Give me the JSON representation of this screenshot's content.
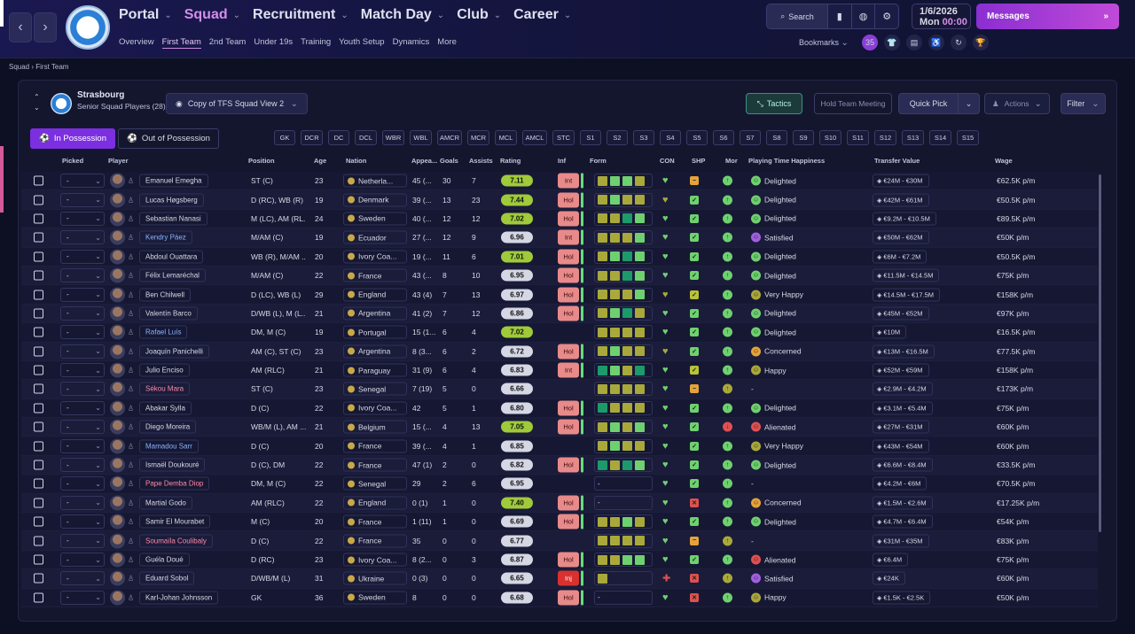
{
  "nav": {
    "back": "‹",
    "forward": "›",
    "items": [
      {
        "label": "Portal",
        "active": false
      },
      {
        "label": "Squad",
        "active": true
      },
      {
        "label": "Recruitment",
        "active": false
      },
      {
        "label": "Match Day",
        "active": false
      },
      {
        "label": "Club",
        "active": false
      },
      {
        "label": "Career",
        "active": false
      }
    ],
    "sub": [
      {
        "label": "Overview"
      },
      {
        "label": "First Team",
        "active": true
      },
      {
        "label": "2nd Team"
      },
      {
        "label": "Under 19s"
      },
      {
        "label": "Training"
      },
      {
        "label": "Youth Setup"
      },
      {
        "label": "Dynamics"
      },
      {
        "label": "More"
      }
    ]
  },
  "toolbar": {
    "search": "Search",
    "date": "1/6/2026",
    "day": "Mon",
    "time": "00:00",
    "messages": "Messages",
    "bookmarks": "Bookmarks",
    "notif_count": "35"
  },
  "breadcrumb": {
    "parent": "Squad",
    "current": "First Team"
  },
  "club": {
    "name": "Strasbourg",
    "sub": "Senior Squad Players (28)"
  },
  "view": {
    "label": "Copy of TFS Squad View 2"
  },
  "buttons": {
    "tactics": "Tactics",
    "team_meeting": "Hold Team Meeting",
    "quick_pick": "Quick Pick",
    "actions": "Actions",
    "filter": "Filter",
    "in_possession": "In Possession",
    "out_possession": "Out of Possession"
  },
  "positions": [
    "GK",
    "DCR",
    "DC",
    "DCL",
    "WBR",
    "WBL",
    "AMCR",
    "MCR",
    "MCL",
    "AMCL",
    "STC",
    "S1",
    "S2",
    "S3",
    "S4",
    "S5",
    "S6",
    "S7",
    "S8",
    "S9",
    "S10",
    "S11",
    "S12",
    "S13",
    "S14",
    "S15"
  ],
  "columns": {
    "picked": "Picked",
    "player": "Player",
    "position": "Position",
    "age": "Age",
    "nation": "Nation",
    "apps": "Appea...",
    "goals": "Goals",
    "assists": "Assists",
    "rating": "Rating",
    "inf": "Inf",
    "form": "Form",
    "con": "CON",
    "shp": "SHP",
    "mor": "Mor",
    "pth": "Playing Time Happiness",
    "value": "Transfer Value",
    "wage": "Wage"
  },
  "rows": [
    {
      "picked": "-",
      "name": "Emanuel Emegha",
      "nc": "",
      "pos": "ST (C)",
      "age": "23",
      "nation": "Netherla...",
      "apps": "45 (...",
      "goals": "30",
      "assists": "7",
      "rating": "7.11",
      "inf": "Int",
      "form": [
        "y",
        "g",
        "g",
        "y"
      ],
      "con": "g",
      "shp": "o",
      "mor": "g",
      "pth": "Delighted",
      "ph": "g",
      "value": "€24M - €30M",
      "wage": "€62.5K p/m"
    },
    {
      "picked": "-",
      "name": "Lucas Høgsberg",
      "nc": "",
      "pos": "D (RC), WB (R)",
      "age": "19",
      "nation": "Denmark",
      "apps": "39 (...",
      "goals": "13",
      "assists": "23",
      "rating": "7.44",
      "inf": "Hol",
      "form": [
        "y",
        "g",
        "y",
        "y"
      ],
      "con": "y",
      "shp": "g",
      "mor": "g",
      "pth": "Delighted",
      "ph": "g",
      "value": "€42M - €61M",
      "wage": "€50.5K p/m"
    },
    {
      "picked": "-",
      "name": "Sebastian Nanasi",
      "nc": "",
      "pos": "M (LC), AM (RL...",
      "age": "24",
      "nation": "Sweden",
      "apps": "40 (...",
      "goals": "12",
      "assists": "12",
      "rating": "7.02",
      "inf": "Hol",
      "form": [
        "y",
        "y",
        "t",
        "g"
      ],
      "con": "g",
      "shp": "g",
      "mor": "g",
      "pth": "Delighted",
      "ph": "g",
      "value": "€9.2M - €10.5M",
      "wage": "€89.5K p/m"
    },
    {
      "picked": "-",
      "name": "Kendry Páez",
      "nc": "blue",
      "pos": "M/AM (C)",
      "age": "19",
      "nation": "Ecuador",
      "apps": "27 (...",
      "goals": "12",
      "assists": "9",
      "rating": "6.96",
      "inf": "Int",
      "form": [
        "y",
        "y",
        "y",
        "g"
      ],
      "con": "g",
      "shp": "g",
      "mor": "g",
      "pth": "Satisfied",
      "ph": "p",
      "value": "€50M - €62M",
      "wage": "€50K p/m"
    },
    {
      "picked": "-",
      "name": "Abdoul Ouattara",
      "nc": "",
      "pos": "WB (R), M/AM ...",
      "age": "20",
      "nation": "Ivory Coa...",
      "apps": "19 (...",
      "goals": "11",
      "assists": "6",
      "rating": "7.01",
      "inf": "Hol",
      "form": [
        "y",
        "g",
        "t",
        "g"
      ],
      "con": "g",
      "shp": "g",
      "mor": "g",
      "pth": "Delighted",
      "ph": "g",
      "value": "€6M - €7.2M",
      "wage": "€50.5K p/m"
    },
    {
      "picked": "-",
      "name": "Félix Lemaréchal",
      "nc": "",
      "pos": "M/AM (C)",
      "age": "22",
      "nation": "France",
      "apps": "43 (...",
      "goals": "8",
      "assists": "10",
      "rating": "6.95",
      "inf": "Hol",
      "form": [
        "y",
        "y",
        "t",
        "g"
      ],
      "con": "g",
      "shp": "g",
      "mor": "g",
      "pth": "Delighted",
      "ph": "g",
      "value": "€11.5M - €14.5M",
      "wage": "€75K p/m"
    },
    {
      "picked": "-",
      "name": "Ben Chilwell",
      "nc": "",
      "pos": "D (LC), WB (L)",
      "age": "29",
      "nation": "England",
      "apps": "43 (4)",
      "goals": "7",
      "assists": "13",
      "rating": "6.97",
      "inf": "Hol",
      "form": [
        "y",
        "y",
        "y",
        "g"
      ],
      "con": "y",
      "shp": "a",
      "mor": "g",
      "pth": "Very Happy",
      "ph": "y",
      "value": "€14.5M - €17.5M",
      "wage": "€158K p/m"
    },
    {
      "picked": "-",
      "name": "Valentín Barco",
      "nc": "",
      "pos": "D/WB (L), M (L...",
      "age": "21",
      "nation": "Argentina",
      "apps": "41 (2)",
      "goals": "7",
      "assists": "12",
      "rating": "6.86",
      "inf": "Hol",
      "form": [
        "y",
        "g",
        "t",
        "y"
      ],
      "con": "g",
      "shp": "g",
      "mor": "g",
      "pth": "Delighted",
      "ph": "g",
      "value": "€45M - €52M",
      "wage": "€97K p/m"
    },
    {
      "picked": "-",
      "name": "Rafael Luís",
      "nc": "blue",
      "pos": "DM, M (C)",
      "age": "19",
      "nation": "Portugal",
      "apps": "15 (1...",
      "goals": "6",
      "assists": "4",
      "rating": "7.02",
      "inf": "",
      "form": [
        "y",
        "y",
        "y",
        "y"
      ],
      "con": "g",
      "shp": "g",
      "mor": "g",
      "pth": "Delighted",
      "ph": "g",
      "value": "€10M",
      "wage": "€16.5K p/m"
    },
    {
      "picked": "-",
      "name": "Joaquín Panichelli",
      "nc": "",
      "pos": "AM (C), ST (C)",
      "age": "23",
      "nation": "Argentina",
      "apps": "8 (3...",
      "goals": "6",
      "assists": "2",
      "rating": "6.72",
      "inf": "Hol",
      "form": [
        "y",
        "g",
        "y",
        "y"
      ],
      "con": "y",
      "shp": "g",
      "mor": "g",
      "pth": "Concerned",
      "ph": "o",
      "value": "€13M - €16.5M",
      "wage": "€77.5K p/m"
    },
    {
      "picked": "-",
      "name": "Julio Enciso",
      "nc": "",
      "pos": "AM (RLC)",
      "age": "21",
      "nation": "Paraguay",
      "apps": "31 (9)",
      "goals": "6",
      "assists": "4",
      "rating": "6.83",
      "inf": "Int",
      "form": [
        "t",
        "g",
        "y",
        "t"
      ],
      "con": "g",
      "shp": "a",
      "mor": "g",
      "pth": "Happy",
      "ph": "y",
      "value": "€52M - €59M",
      "wage": "€158K p/m"
    },
    {
      "picked": "-",
      "name": "Sékou Mara",
      "nc": "red",
      "pos": "ST (C)",
      "age": "23",
      "nation": "Senegal",
      "apps": "7 (19)",
      "goals": "5",
      "assists": "0",
      "rating": "6.66",
      "inf": "",
      "form": [
        "y",
        "y",
        "y",
        "y"
      ],
      "con": "g",
      "shp": "o",
      "mor": "y",
      "pth": "-",
      "ph": "",
      "value": "€2.9M - €4.2M",
      "wage": "€173K p/m"
    },
    {
      "picked": "-",
      "name": "Abakar Sylla",
      "nc": "",
      "pos": "D (C)",
      "age": "22",
      "nation": "Ivory Coa...",
      "apps": "42",
      "goals": "5",
      "assists": "1",
      "rating": "6.80",
      "inf": "Hol",
      "form": [
        "t",
        "y",
        "y",
        "y"
      ],
      "con": "g",
      "shp": "g",
      "mor": "g",
      "pth": "Delighted",
      "ph": "g",
      "value": "€3.1M - €5.4M",
      "wage": "€75K p/m"
    },
    {
      "picked": "-",
      "name": "Diego Moreira",
      "nc": "",
      "pos": "WB/M (L), AM ...",
      "age": "21",
      "nation": "Belgium",
      "apps": "15 (...",
      "goals": "4",
      "assists": "13",
      "rating": "7.05",
      "inf": "Hol",
      "form": [
        "y",
        "g",
        "y",
        "g"
      ],
      "con": "g",
      "shp": "g",
      "mor": "r",
      "pth": "Alienated",
      "ph": "r",
      "value": "€27M - €31M",
      "wage": "€60K p/m"
    },
    {
      "picked": "-",
      "name": "Mamadou Sarr",
      "nc": "blue",
      "pos": "D (C)",
      "age": "20",
      "nation": "France",
      "apps": "39 (...",
      "goals": "4",
      "assists": "1",
      "rating": "6.85",
      "inf": "",
      "form": [
        "y",
        "g",
        "y",
        "y"
      ],
      "con": "g",
      "shp": "g",
      "mor": "g",
      "pth": "Very Happy",
      "ph": "y",
      "value": "€43M - €54M",
      "wage": "€60K p/m"
    },
    {
      "picked": "-",
      "name": "Ismaël Doukouré",
      "nc": "",
      "pos": "D (C), DM",
      "age": "22",
      "nation": "France",
      "apps": "47 (1)",
      "goals": "2",
      "assists": "0",
      "rating": "6.82",
      "inf": "Hol",
      "form": [
        "t",
        "y",
        "t",
        "g"
      ],
      "con": "g",
      "shp": "g",
      "mor": "g",
      "pth": "Delighted",
      "ph": "g",
      "value": "€6.6M - €8.4M",
      "wage": "€33.5K p/m"
    },
    {
      "picked": "-",
      "name": "Pape Demba Diop",
      "nc": "red",
      "pos": "DM, M (C)",
      "age": "22",
      "nation": "Senegal",
      "apps": "29",
      "goals": "2",
      "assists": "6",
      "rating": "6.95",
      "inf": "",
      "form": [],
      "con": "g",
      "shp": "g",
      "mor": "g",
      "pth": "-",
      "ph": "",
      "value": "€4.2M - €6M",
      "wage": "€70.5K p/m"
    },
    {
      "picked": "-",
      "name": "Martial Godo",
      "nc": "",
      "pos": "AM (RLC)",
      "age": "22",
      "nation": "England",
      "apps": "0 (1)",
      "goals": "1",
      "assists": "0",
      "rating": "7.40",
      "inf": "Hol",
      "form": [],
      "con": "g",
      "shp": "r",
      "mor": "g",
      "pth": "Concerned",
      "ph": "o",
      "value": "€1.5M - €2.6M",
      "wage": "€17.25K p/m"
    },
    {
      "picked": "-",
      "name": "Samir El Mourabet",
      "nc": "",
      "pos": "M (C)",
      "age": "20",
      "nation": "France",
      "apps": "1 (11)",
      "goals": "1",
      "assists": "0",
      "rating": "6.69",
      "inf": "Hol",
      "form": [
        "y",
        "y",
        "g",
        "y"
      ],
      "con": "g",
      "shp": "g",
      "mor": "g",
      "pth": "Delighted",
      "ph": "g",
      "value": "€4.7M - €6.4M",
      "wage": "€54K p/m"
    },
    {
      "picked": "-",
      "name": "Soumaïla Coulibaly",
      "nc": "red",
      "pos": "D (C)",
      "age": "22",
      "nation": "France",
      "apps": "35",
      "goals": "0",
      "assists": "0",
      "rating": "6.77",
      "inf": "",
      "form": [
        "y",
        "y",
        "y",
        "y"
      ],
      "con": "g",
      "shp": "o",
      "mor": "y",
      "pth": "-",
      "ph": "",
      "value": "€31M - €35M",
      "wage": "€83K p/m"
    },
    {
      "picked": "-",
      "name": "Guéla Doué",
      "nc": "",
      "pos": "D (RC)",
      "age": "23",
      "nation": "Ivory Coa...",
      "apps": "8 (2...",
      "goals": "0",
      "assists": "3",
      "rating": "6.87",
      "inf": "Hol",
      "form": [
        "y",
        "y",
        "g",
        "g"
      ],
      "con": "g",
      "shp": "g",
      "mor": "g",
      "pth": "Alienated",
      "ph": "r",
      "value": "€6.4M",
      "wage": "€75K p/m"
    },
    {
      "picked": "-",
      "name": "Eduard Sobol",
      "nc": "",
      "pos": "D/WB/M (L)",
      "age": "31",
      "nation": "Ukraine",
      "apps": "0 (3)",
      "goals": "0",
      "assists": "0",
      "rating": "6.65",
      "inf": "Inj",
      "form": [
        "y"
      ],
      "con": "r",
      "shp": "r",
      "mor": "y",
      "pth": "Satisfied",
      "ph": "p",
      "value": "€24K",
      "wage": "€60K p/m"
    },
    {
      "picked": "-",
      "name": "Karl-Johan Johnsson",
      "nc": "",
      "pos": "GK",
      "age": "36",
      "nation": "Sweden",
      "apps": "8",
      "goals": "0",
      "assists": "0",
      "rating": "6.68",
      "inf": "Hol",
      "form": [],
      "con": "g",
      "shp": "r",
      "mor": "g",
      "pth": "Happy",
      "ph": "y",
      "value": "€1.5K - €2.5K",
      "wage": "€50K p/m"
    }
  ]
}
